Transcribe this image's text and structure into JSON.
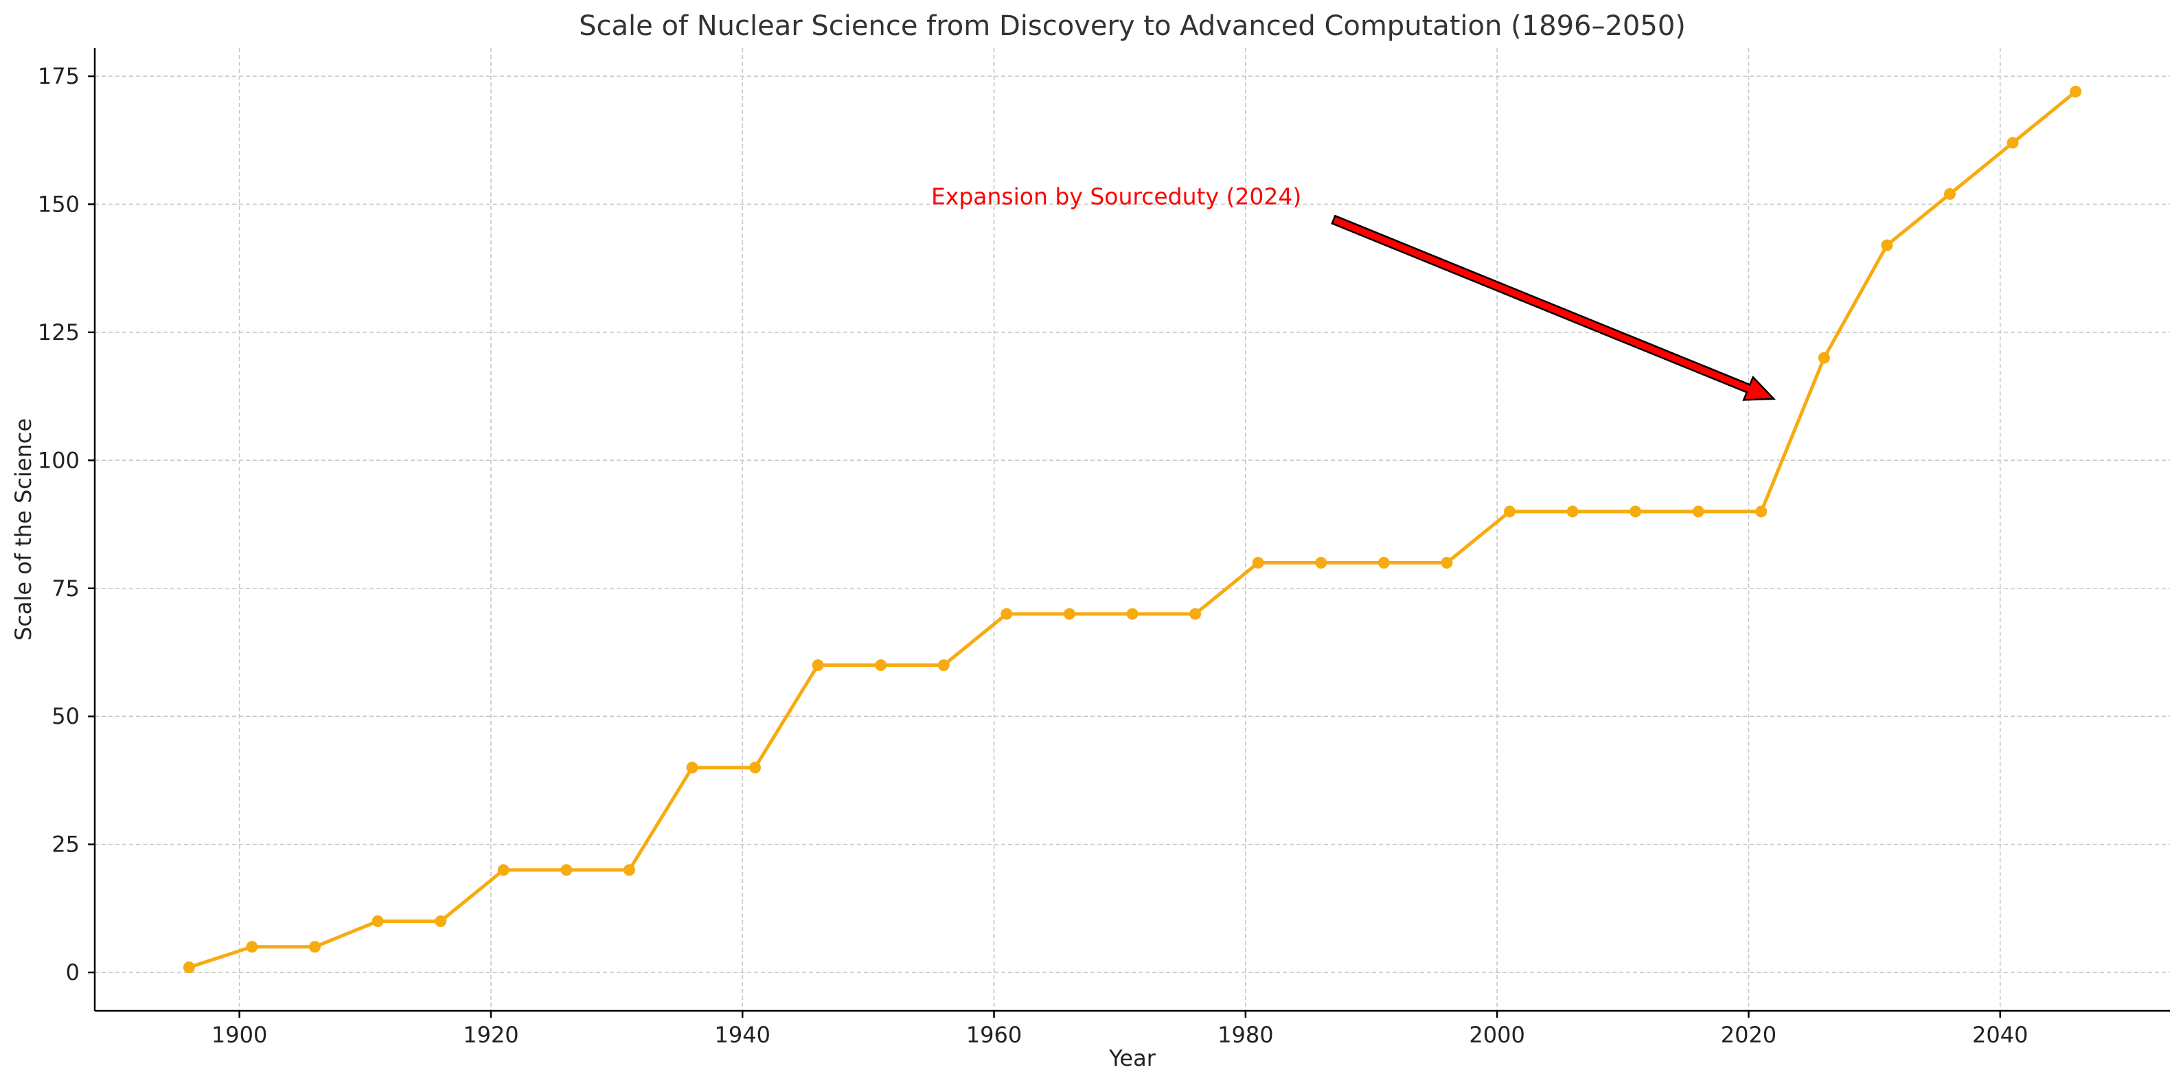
{
  "chart_data": {
    "type": "line",
    "title": "Scale of Nuclear Science from Discovery to Advanced Computation (1896–2050)",
    "xlabel": "Year",
    "ylabel": "Scale of the Science",
    "xlim": [
      1888.5,
      2053.5
    ],
    "ylim": [
      -7.5,
      180.5
    ],
    "xticks": [
      1900,
      1920,
      1940,
      1960,
      1980,
      2000,
      2020,
      2040
    ],
    "yticks": [
      0,
      25,
      50,
      75,
      100,
      125,
      150,
      175
    ],
    "grid": true,
    "line_color": "#f7ab10",
    "x": [
      1896,
      1901,
      1906,
      1911,
      1916,
      1921,
      1926,
      1931,
      1936,
      1941,
      1946,
      1951,
      1956,
      1961,
      1966,
      1971,
      1976,
      1981,
      1986,
      1991,
      1996,
      2001,
      2006,
      2011,
      2016,
      2021,
      2026,
      2031,
      2036,
      2041,
      2046
    ],
    "values": [
      1,
      5,
      5,
      10,
      10,
      20,
      20,
      20,
      40,
      40,
      60,
      60,
      60,
      70,
      70,
      70,
      70,
      80,
      80,
      80,
      80,
      90,
      90,
      90,
      90,
      90,
      120,
      142,
      152,
      162,
      172
    ],
    "annotation": {
      "text": "Expansion by Sourceduty (2024)",
      "text_color": "#ff0000",
      "arrow_color": "#ff0000",
      "text_at": [
        1955,
        150
      ],
      "arrow_from": [
        1987,
        147
      ],
      "arrow_to": [
        2022,
        112
      ]
    }
  }
}
